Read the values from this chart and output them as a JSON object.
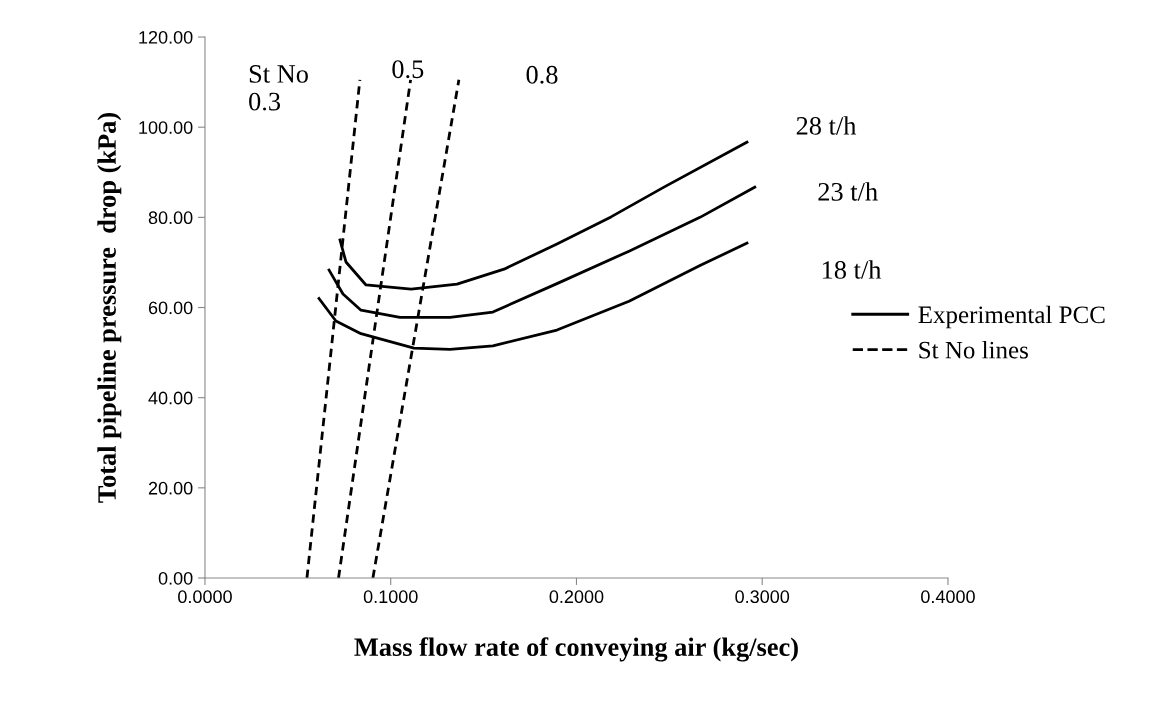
{
  "chart_data": {
    "type": "line",
    "xlabel": "Mass flow rate of conveying air (kg/sec)",
    "ylabel": "Total pipeline pressure  drop (kPa)",
    "xlim": [
      0,
      0.4
    ],
    "ylim": [
      0,
      120
    ],
    "xticks": [
      {
        "value": 0,
        "label": "0.0000"
      },
      {
        "value": 0.1,
        "label": "0.1000"
      },
      {
        "value": 0.2,
        "label": "0.2000"
      },
      {
        "value": 0.3,
        "label": "0.3000"
      },
      {
        "value": 0.4,
        "label": "0.4000"
      }
    ],
    "yticks": [
      {
        "value": 0,
        "label": "0.00"
      },
      {
        "value": 20,
        "label": "20.00"
      },
      {
        "value": 40,
        "label": "40.00"
      },
      {
        "value": 60,
        "label": "60.00"
      },
      {
        "value": 80,
        "label": "80.00"
      },
      {
        "value": 100,
        "label": "100.00"
      },
      {
        "value": 120,
        "label": "120.00"
      }
    ],
    "grid": false,
    "legend": "right",
    "marker": "none",
    "series": [
      {
        "name": "Experimental PCC",
        "color": "#000000",
        "line_style": "solid",
        "x": [
          0.0727,
          0.0759,
          0.0867,
          0.111,
          0.1357,
          0.161,
          0.1895,
          0.2186,
          0.2471,
          0.2918
        ],
        "values": [
          75.0,
          70.1,
          65.0,
          64.1,
          65.2,
          68.5,
          74.1,
          80.1,
          86.7,
          96.7
        ]
      },
      {
        "color": "#000000",
        "line_style": "solid",
        "x": [
          0.0668,
          0.0743,
          0.084,
          0.105,
          0.1319,
          0.155,
          0.1895,
          0.2283,
          0.2665,
          0.296
        ],
        "values": [
          68.3,
          63.0,
          59.4,
          57.8,
          57.8,
          59.0,
          65.3,
          72.5,
          80.0,
          86.7
        ]
      },
      {
        "color": "#000000",
        "line_style": "solid",
        "x": [
          0.0614,
          0.0705,
          0.084,
          0.1125,
          0.1319,
          0.155,
          0.1895,
          0.2283,
          0.2665,
          0.2918
        ],
        "values": [
          62.0,
          57.0,
          54.2,
          51.0,
          50.7,
          51.5,
          55.0,
          61.4,
          69.3,
          74.3
        ]
      },
      {
        "name": "St No lines",
        "color": "#000000",
        "line_style": "dashed",
        "x": [
          0.0549,
          0.0834
        ],
        "values": [
          0,
          110.5
        ]
      },
      {
        "color": "#000000",
        "line_style": "dashed",
        "x": [
          0.0719,
          0.1107
        ],
        "values": [
          0,
          110.5
        ]
      },
      {
        "color": "#000000",
        "line_style": "dashed",
        "x": [
          0.0904,
          0.1367
        ],
        "values": [
          0,
          110.5
        ]
      }
    ],
    "annotations": [
      "St No\n0.3",
      {
        "text": "0.5",
        "x": 0.1107,
        "y": 110.5
      },
      "0.8",
      {
        "text": "28 t/h",
        "x": 0.2918,
        "y": 96.7
      },
      {
        "text": "23 t/h",
        "x": 0.296,
        "y": 86.7
      },
      {
        "text": "18 t/h",
        "x": 0.2918,
        "y": 74.3
      }
    ]
  }
}
